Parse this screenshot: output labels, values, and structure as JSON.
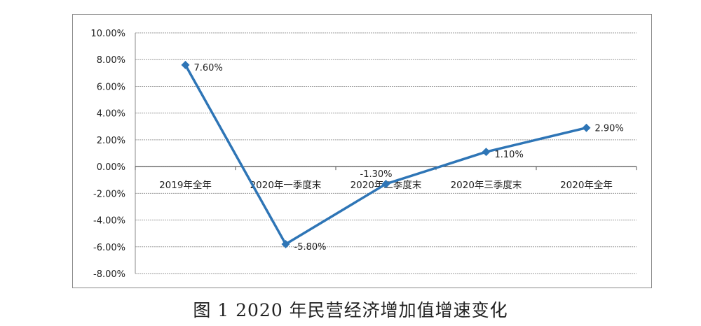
{
  "caption": "图 1 2020 年民营经济增加值增速变化",
  "chart_data": {
    "type": "line",
    "categories": [
      "2019年全年",
      "2020年一季度末",
      "2020年二季度末",
      "2020年三季度末",
      "2020年全年"
    ],
    "series": [
      {
        "values": [
          7.6,
          -5.8,
          -1.3,
          1.1,
          2.9
        ]
      }
    ],
    "data_labels": [
      "7.60%",
      "-5.80%",
      "-1.30%",
      "1.10%",
      "2.90%"
    ],
    "ytick_labels": [
      "10.00%",
      "8.00%",
      "6.00%",
      "4.00%",
      "2.00%",
      "0.00%",
      "-2.00%",
      "-4.00%",
      "-6.00%",
      "-8.00%"
    ],
    "ylim": [
      -8,
      10
    ],
    "grid": true,
    "line_color": "#2e75b6"
  }
}
